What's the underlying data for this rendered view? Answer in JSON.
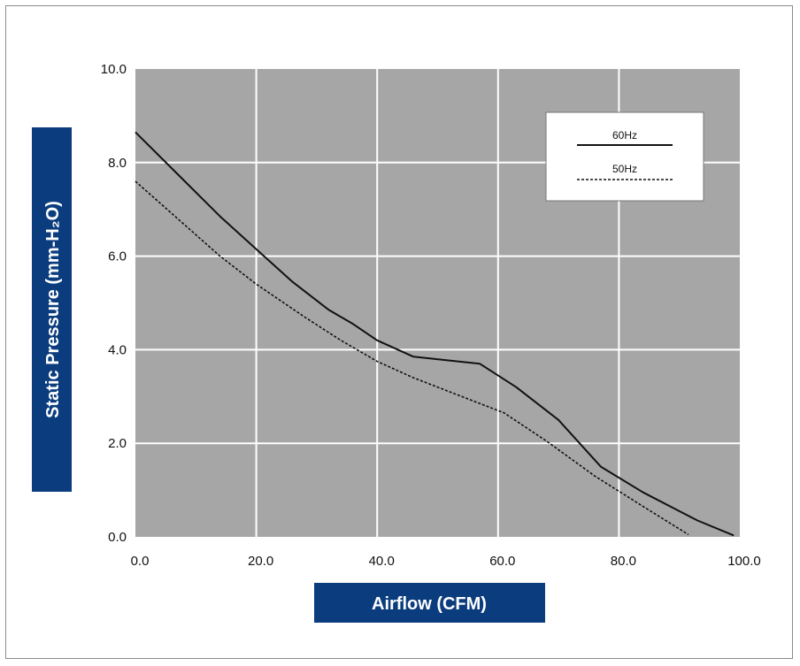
{
  "chart_data": {
    "type": "line",
    "title": "",
    "xlabel": "Airflow (CFM)",
    "ylabel": "Static Pressure (mm-H₂O)",
    "xlim": [
      0,
      100
    ],
    "ylim": [
      0,
      10
    ],
    "x_ticks": [
      "0.0",
      "20.0",
      "40.0",
      "60.0",
      "80.0",
      "100.0"
    ],
    "y_ticks": [
      "0.0",
      "2.0",
      "4.0",
      "6.0",
      "8.0",
      "10.0"
    ],
    "grid": true,
    "legend_position": "top-right",
    "series": [
      {
        "name": "60Hz",
        "style": "solid",
        "color": "#111111",
        "x": [
          0,
          7,
          14,
          20,
          26,
          32,
          36,
          40,
          46,
          57,
          63,
          70,
          77,
          84,
          93,
          99
        ],
        "y": [
          8.65,
          7.75,
          6.85,
          6.15,
          5.45,
          4.85,
          4.55,
          4.2,
          3.85,
          3.7,
          3.2,
          2.5,
          1.5,
          0.95,
          0.35,
          0.03
        ]
      },
      {
        "name": "50Hz",
        "style": "dashed",
        "color": "#111111",
        "x": [
          0,
          7,
          14,
          20,
          28,
          34,
          40,
          46,
          54,
          61,
          68,
          76,
          84,
          91.5
        ],
        "y": [
          7.6,
          6.8,
          6.0,
          5.4,
          4.7,
          4.2,
          3.75,
          3.4,
          3.0,
          2.65,
          2.05,
          1.3,
          0.65,
          0.05
        ]
      }
    ]
  }
}
